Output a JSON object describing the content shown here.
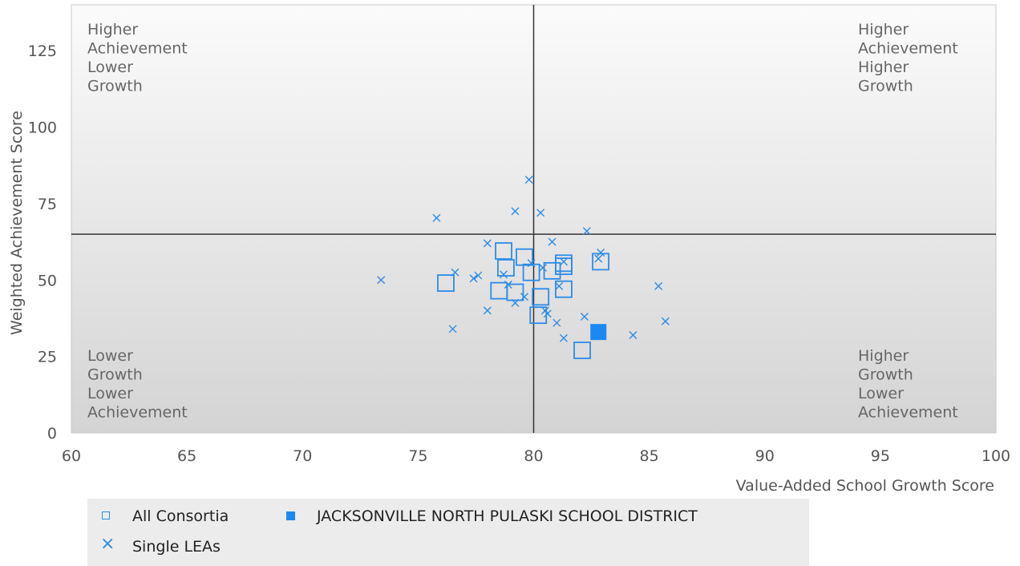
{
  "chart_data": {
    "type": "scatter",
    "xlabel": "Value-Added School Growth Score",
    "ylabel": "Weighted Achievement Score",
    "xlim": [
      60,
      100
    ],
    "ylim": [
      0,
      140
    ],
    "x_ticks": [
      60,
      65,
      70,
      75,
      80,
      85,
      90,
      95,
      100
    ],
    "y_ticks": [
      0,
      25,
      50,
      75,
      100,
      125
    ],
    "reference_lines": {
      "x": 80,
      "y": 65
    },
    "grid": false,
    "legend_position": "bottom",
    "quadrant_labels": {
      "top_left": [
        "Higher",
        "Achievement",
        "Lower",
        "Growth"
      ],
      "top_right": [
        "Higher",
        "Achievement",
        "Higher",
        "Growth"
      ],
      "bottom_left": [
        "Lower",
        "Growth",
        "Lower",
        "Achievement"
      ],
      "bottom_right": [
        "Higher",
        "Growth",
        "Lower",
        "Achievement"
      ]
    },
    "colors": {
      "series": "#2c8be8",
      "highlight": "#1e88f0",
      "lines": "#333333"
    },
    "series": [
      {
        "name": "All Consortia",
        "marker": "open-square",
        "points": [
          [
            76.2,
            49
          ],
          [
            78.5,
            46.5
          ],
          [
            78.7,
            59.5
          ],
          [
            78.8,
            54
          ],
          [
            79.2,
            46
          ],
          [
            79.6,
            57.5
          ],
          [
            79.9,
            52.5
          ],
          [
            80.2,
            38.5
          ],
          [
            80.3,
            44.5
          ],
          [
            80.8,
            53
          ],
          [
            81.3,
            54.5
          ],
          [
            81.3,
            55.5
          ],
          [
            81.3,
            47
          ],
          [
            82.1,
            27
          ],
          [
            82.9,
            56
          ]
        ]
      },
      {
        "name": "JACKSONVILLE NORTH PULASKI SCHOOL DISTRICT",
        "marker": "filled-square",
        "points": [
          [
            82.8,
            33
          ]
        ]
      },
      {
        "name": "Single LEAs",
        "marker": "x",
        "points": [
          [
            73.4,
            50
          ],
          [
            75.8,
            70.3
          ],
          [
            76.5,
            34
          ],
          [
            76.6,
            52.5
          ],
          [
            77.4,
            50.5
          ],
          [
            77.6,
            51.5
          ],
          [
            78.0,
            40
          ],
          [
            78.0,
            62
          ],
          [
            78.7,
            51.8
          ],
          [
            78.9,
            48.5
          ],
          [
            79.2,
            72.5
          ],
          [
            79.2,
            42.5
          ],
          [
            79.6,
            44.5
          ],
          [
            79.8,
            82.8
          ],
          [
            79.9,
            55.5
          ],
          [
            80.3,
            72
          ],
          [
            80.4,
            54
          ],
          [
            80.5,
            40
          ],
          [
            80.6,
            39
          ],
          [
            80.8,
            62.5
          ],
          [
            81.0,
            36
          ],
          [
            81.1,
            48
          ],
          [
            81.3,
            56
          ],
          [
            81.3,
            31
          ],
          [
            82.2,
            38
          ],
          [
            82.3,
            66
          ],
          [
            82.8,
            57
          ],
          [
            82.9,
            59
          ],
          [
            84.3,
            32
          ],
          [
            85.4,
            48
          ],
          [
            85.7,
            36.5
          ]
        ]
      }
    ]
  },
  "legend": {
    "all_consortia": "All Consortia",
    "district": "JACKSONVILLE NORTH PULASKI SCHOOL DISTRICT",
    "single_leas": "Single LEAs"
  }
}
